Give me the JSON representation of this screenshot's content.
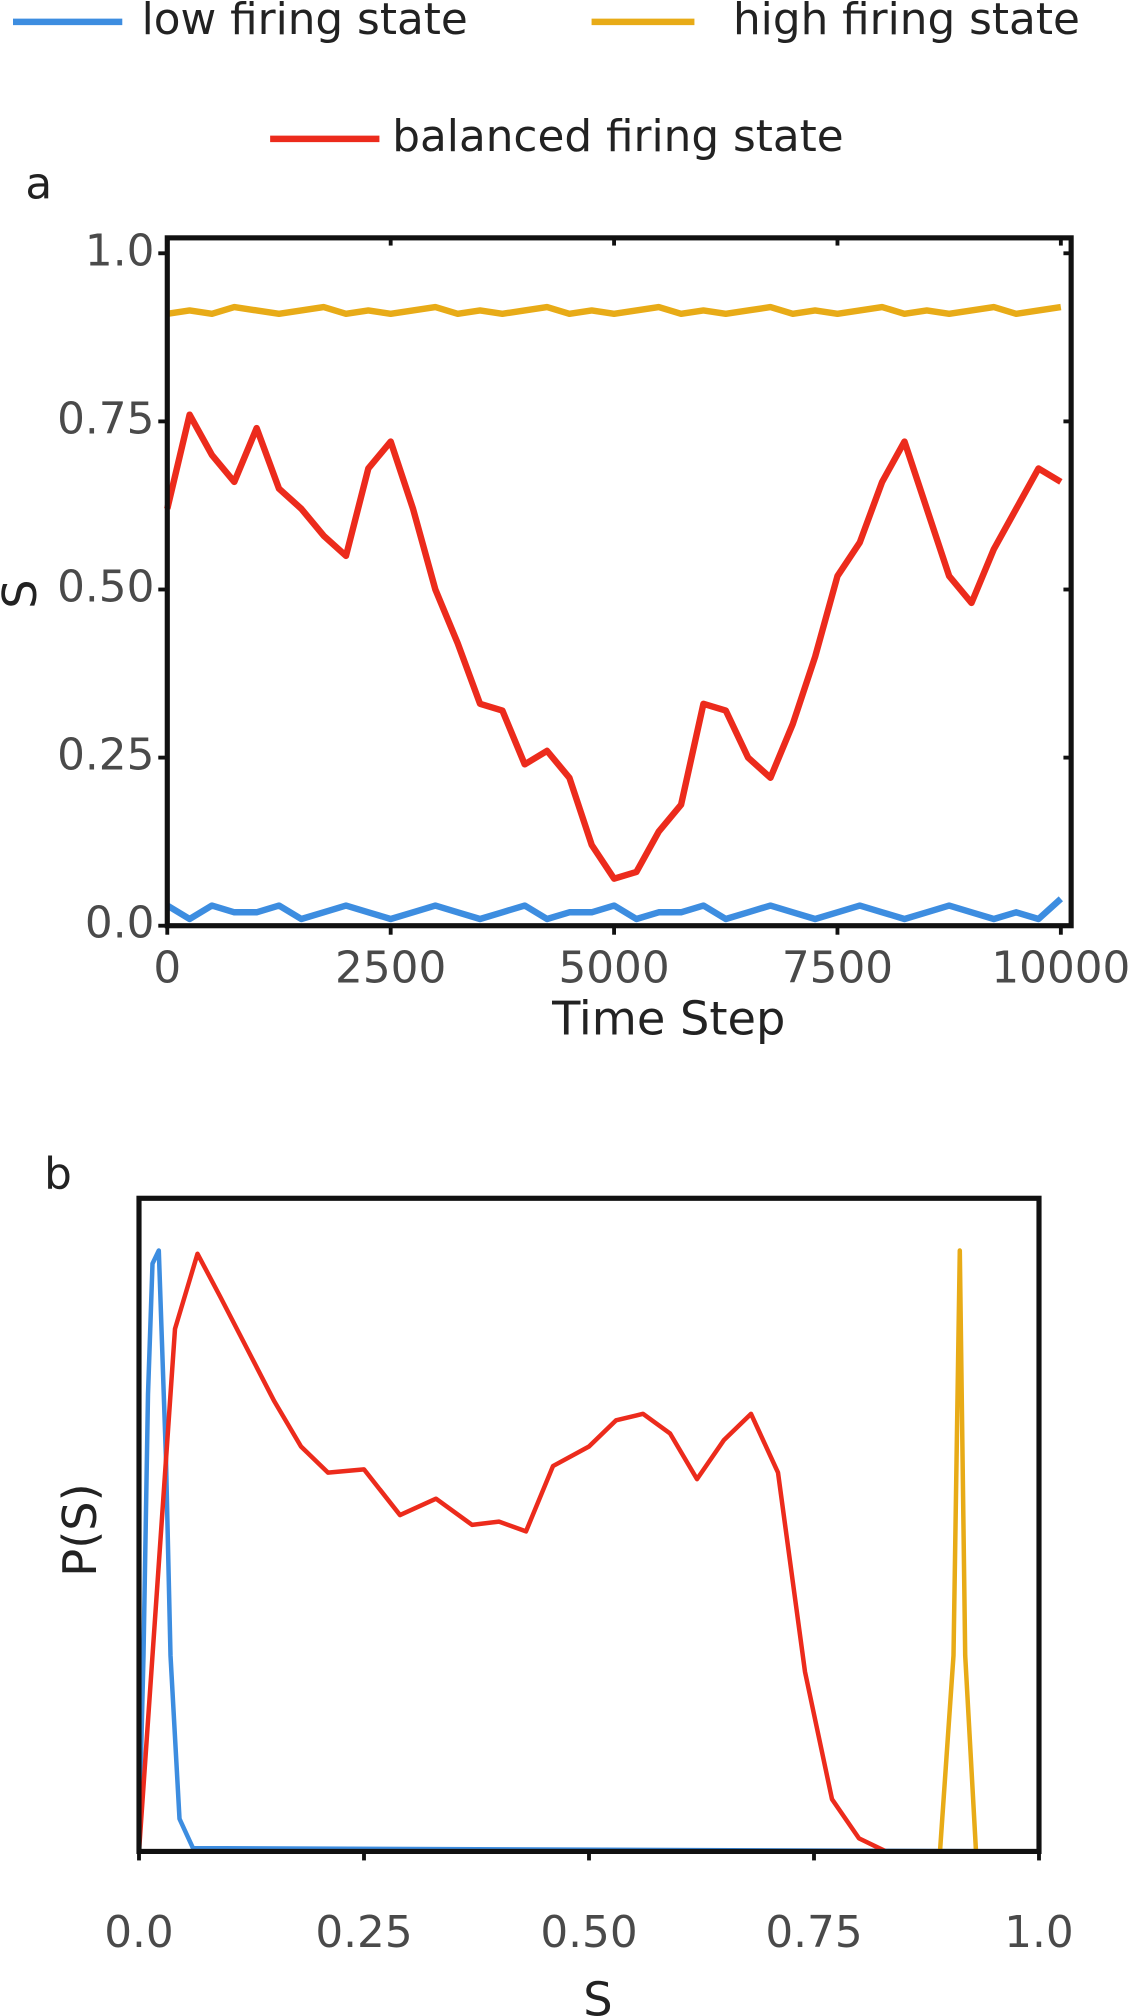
{
  "chart_data": [
    {
      "type": "line",
      "panel": "a",
      "xlabel": "Time Step",
      "ylabel": "S",
      "x": [
        0,
        250,
        500,
        750,
        1000,
        1250,
        1500,
        1750,
        2000,
        2250,
        2500,
        2750,
        3000,
        3250,
        3500,
        3750,
        4000,
        4250,
        4500,
        4750,
        5000,
        5250,
        5500,
        5750,
        6000,
        6250,
        6500,
        6750,
        7000,
        7250,
        7500,
        7750,
        8000,
        8250,
        8500,
        8750,
        9000,
        9250,
        9500,
        9750,
        10000
      ],
      "series": [
        {
          "name": "low firing state",
          "color": "#3d8de0",
          "values": [
            0.03,
            0.01,
            0.03,
            0.02,
            0.02,
            0.03,
            0.01,
            0.02,
            0.03,
            0.02,
            0.01,
            0.02,
            0.03,
            0.02,
            0.01,
            0.02,
            0.03,
            0.01,
            0.02,
            0.02,
            0.03,
            0.01,
            0.02,
            0.02,
            0.03,
            0.01,
            0.02,
            0.03,
            0.02,
            0.01,
            0.02,
            0.03,
            0.02,
            0.01,
            0.02,
            0.03,
            0.02,
            0.01,
            0.02,
            0.01,
            0.04
          ]
        },
        {
          "name": "high firing state",
          "color": "#e8ab17",
          "values": [
            0.91,
            0.915,
            0.91,
            0.92,
            0.915,
            0.91,
            0.915,
            0.92,
            0.91,
            0.915,
            0.91,
            0.915,
            0.92,
            0.91,
            0.915,
            0.91,
            0.915,
            0.92,
            0.91,
            0.915,
            0.91,
            0.915,
            0.92,
            0.91,
            0.915,
            0.91,
            0.915,
            0.92,
            0.91,
            0.915,
            0.91,
            0.915,
            0.92,
            0.91,
            0.915,
            0.91,
            0.915,
            0.92,
            0.91,
            0.915,
            0.92
          ]
        },
        {
          "name": "balanced firing state",
          "color": "#ec2b1c",
          "values": [
            0.62,
            0.76,
            0.7,
            0.66,
            0.74,
            0.65,
            0.62,
            0.58,
            0.55,
            0.68,
            0.72,
            0.62,
            0.5,
            0.42,
            0.33,
            0.32,
            0.24,
            0.26,
            0.22,
            0.12,
            0.07,
            0.08,
            0.14,
            0.18,
            0.33,
            0.32,
            0.25,
            0.22,
            0.3,
            0.4,
            0.52,
            0.57,
            0.66,
            0.72,
            0.62,
            0.52,
            0.48,
            0.56,
            0.62,
            0.68,
            0.66
          ]
        }
      ],
      "xlim": [
        0,
        10000
      ],
      "xticks": [
        0,
        2500,
        5000,
        7500,
        10000
      ],
      "ylim": [
        0,
        1
      ],
      "yticks": [
        {
          "value": 0,
          "label": "0.0"
        },
        0.25,
        {
          "value": 0.5,
          "label": "0.50"
        },
        0.75,
        {
          "value": 1,
          "label": "1.0"
        }
      ]
    },
    {
      "type": "line",
      "panel": "b",
      "xlabel": "S",
      "ylabel": "P(S)",
      "series": [
        {
          "color": "#3d8de0",
          "x": [
            0,
            0.005,
            0.01,
            0.015,
            0.022,
            0.03,
            0.035,
            0.045,
            0.06,
            1.0
          ],
          "values": [
            0.02,
            0.3,
            0.7,
            0.9,
            0.92,
            0.6,
            0.3,
            0.05,
            0.005,
            0
          ]
        },
        {
          "color": "#e8ab17",
          "x": [
            0,
            0.89,
            0.905,
            0.912,
            0.918,
            0.93,
            1.0
          ],
          "values": [
            0,
            0,
            0.3,
            0.92,
            0.3,
            0,
            0
          ]
        },
        {
          "color": "#ec2b1c",
          "x": [
            0,
            0.02,
            0.04,
            0.065,
            0.09,
            0.12,
            0.15,
            0.18,
            0.21,
            0.25,
            0.29,
            0.33,
            0.37,
            0.4,
            0.43,
            0.46,
            0.5,
            0.53,
            0.56,
            0.59,
            0.62,
            0.65,
            0.68,
            0.71,
            0.74,
            0.77,
            0.8,
            0.83,
            1.0
          ],
          "values": [
            0,
            0.4,
            0.8,
            0.915,
            0.85,
            0.77,
            0.69,
            0.62,
            0.58,
            0.585,
            0.515,
            0.54,
            0.5,
            0.505,
            0.49,
            0.59,
            0.62,
            0.66,
            0.67,
            0.64,
            0.57,
            0.63,
            0.67,
            0.58,
            0.275,
            0.08,
            0.02,
            0,
            0
          ]
        }
      ],
      "xlim": [
        0,
        1
      ],
      "xticks": [
        {
          "value": 0,
          "label": "0.0"
        },
        0.25,
        {
          "value": 0.5,
          "label": "0.50"
        },
        0.75,
        {
          "value": 1,
          "label": "1.0"
        }
      ],
      "ylim": [
        0,
        1
      ]
    }
  ]
}
